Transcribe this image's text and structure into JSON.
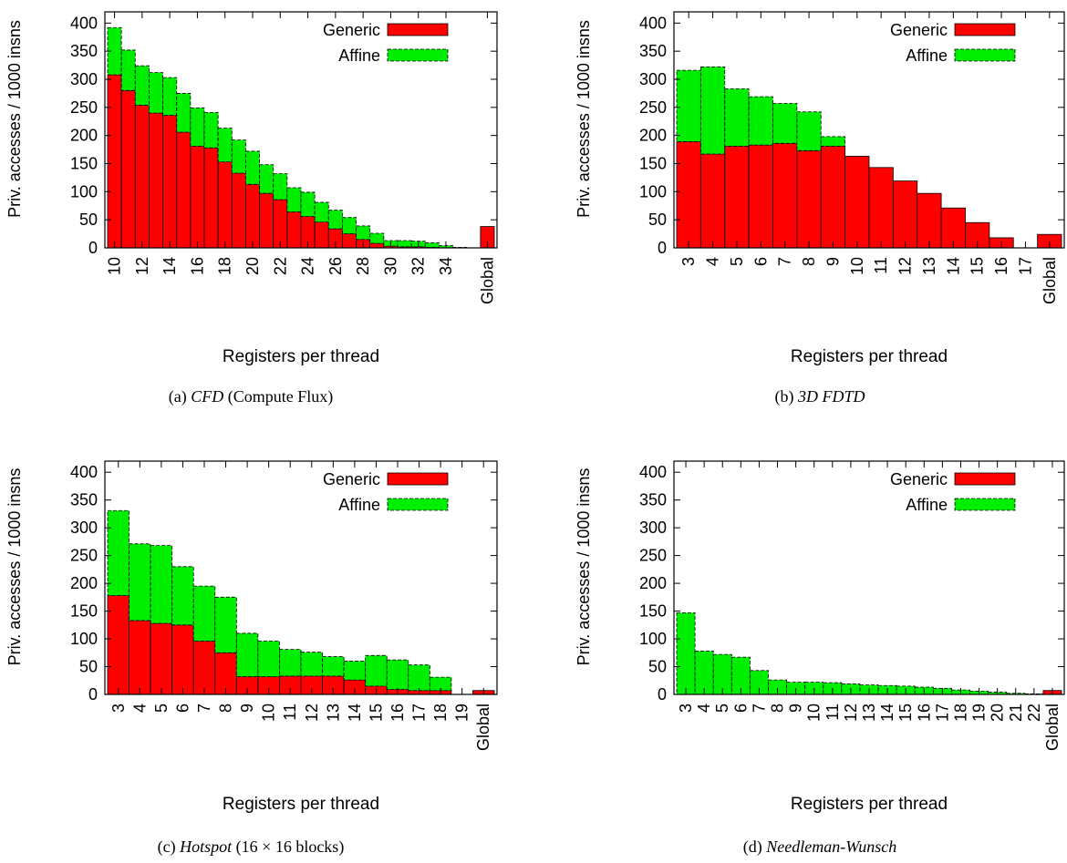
{
  "colors": {
    "generic": "#ff0000",
    "affine": "#00ee00",
    "edge": "#000000"
  },
  "chart_data": [
    {
      "type": "bar",
      "stacked": true,
      "caption_prefix": "(a)",
      "caption_italic": "CFD",
      "caption_rest": " (Compute Flux)",
      "xlabel": "Registers per thread",
      "ylabel": "Priv. accesses / 1000 insns",
      "ylim": [
        0,
        420
      ],
      "yticks": [
        0,
        50,
        100,
        150,
        200,
        250,
        300,
        350,
        400
      ],
      "legend": [
        "Generic",
        "Affine"
      ],
      "legend_position": "top-right",
      "categories": [
        "10",
        "11",
        "12",
        "13",
        "14",
        "15",
        "16",
        "17",
        "18",
        "19",
        "20",
        "21",
        "22",
        "23",
        "24",
        "25",
        "26",
        "27",
        "28",
        "29",
        "30",
        "31",
        "32",
        "33",
        "34",
        "35",
        "36",
        "Global"
      ],
      "tick_labels": [
        "10",
        "",
        "12",
        "",
        "14",
        "",
        "16",
        "",
        "18",
        "",
        "20",
        "",
        "22",
        "",
        "24",
        "",
        "26",
        "",
        "28",
        "",
        "30",
        "",
        "32",
        "",
        "34",
        "",
        "",
        "Global"
      ],
      "series": [
        {
          "name": "Generic",
          "values": [
            308,
            280,
            254,
            240,
            236,
            206,
            181,
            178,
            153,
            133,
            113,
            97,
            86,
            64,
            56,
            46,
            34,
            25,
            15,
            8,
            3,
            2,
            2,
            1,
            0,
            0,
            0,
            38
          ]
        },
        {
          "name": "Affine",
          "values": [
            84,
            72,
            70,
            72,
            67,
            69,
            68,
            63,
            60,
            59,
            59,
            51,
            46,
            43,
            43,
            35,
            33,
            29,
            24,
            18,
            10,
            11,
            10,
            8,
            4,
            1,
            0,
            0
          ]
        }
      ]
    },
    {
      "type": "bar",
      "stacked": true,
      "caption_prefix": "(b)",
      "caption_italic": "3D FDTD",
      "caption_rest": "",
      "xlabel": "Registers per thread",
      "ylabel": "Priv. accesses / 1000 insns",
      "ylim": [
        0,
        420
      ],
      "yticks": [
        0,
        50,
        100,
        150,
        200,
        250,
        300,
        350,
        400
      ],
      "legend": [
        "Generic",
        "Affine"
      ],
      "legend_position": "top-right",
      "categories": [
        "3",
        "4",
        "5",
        "6",
        "7",
        "8",
        "9",
        "10",
        "11",
        "12",
        "13",
        "14",
        "15",
        "16",
        "17",
        "Global"
      ],
      "tick_labels": [
        "3",
        "4",
        "5",
        "6",
        "7",
        "8",
        "9",
        "10",
        "11",
        "12",
        "13",
        "14",
        "15",
        "16",
        "17",
        "Global"
      ],
      "series": [
        {
          "name": "Generic",
          "values": [
            189,
            167,
            181,
            183,
            186,
            173,
            181,
            163,
            143,
            119,
            97,
            71,
            45,
            18,
            0,
            24
          ]
        },
        {
          "name": "Affine",
          "values": [
            127,
            155,
            102,
            86,
            71,
            69,
            17,
            0,
            0,
            0,
            0,
            0,
            0,
            0,
            0,
            0
          ]
        }
      ]
    },
    {
      "type": "bar",
      "stacked": true,
      "caption_prefix": "(c)",
      "caption_italic": "Hotspot",
      "caption_rest": " (16 × 16 blocks)",
      "xlabel": "Registers per thread",
      "ylabel": "Priv. accesses / 1000 insns",
      "ylim": [
        0,
        420
      ],
      "yticks": [
        0,
        50,
        100,
        150,
        200,
        250,
        300,
        350,
        400
      ],
      "legend": [
        "Generic",
        "Affine"
      ],
      "legend_position": "top-right",
      "categories": [
        "3",
        "4",
        "5",
        "6",
        "7",
        "8",
        "9",
        "10",
        "11",
        "12",
        "13",
        "14",
        "15",
        "16",
        "17",
        "18",
        "19",
        "Global"
      ],
      "tick_labels": [
        "3",
        "4",
        "5",
        "6",
        "7",
        "8",
        "9",
        "10",
        "11",
        "12",
        "13",
        "14",
        "15",
        "16",
        "17",
        "18",
        "19",
        "Global"
      ],
      "series": [
        {
          "name": "Generic",
          "values": [
            178,
            133,
            128,
            125,
            96,
            75,
            32,
            32,
            33,
            33,
            33,
            26,
            15,
            9,
            7,
            7,
            0,
            7
          ]
        },
        {
          "name": "Affine",
          "values": [
            153,
            138,
            140,
            105,
            99,
            100,
            78,
            64,
            48,
            43,
            35,
            34,
            55,
            53,
            46,
            24,
            0,
            0
          ]
        }
      ]
    },
    {
      "type": "bar",
      "stacked": true,
      "caption_prefix": "(d)",
      "caption_italic": "Needleman-Wunsch",
      "caption_rest": "",
      "xlabel": "Registers per thread",
      "ylabel": "Priv. accesses / 1000 insns",
      "ylim": [
        0,
        420
      ],
      "yticks": [
        0,
        50,
        100,
        150,
        200,
        250,
        300,
        350,
        400
      ],
      "legend": [
        "Generic",
        "Affine"
      ],
      "legend_position": "top-right",
      "categories": [
        "3",
        "4",
        "5",
        "6",
        "7",
        "8",
        "9",
        "10",
        "11",
        "12",
        "13",
        "14",
        "15",
        "16",
        "17",
        "18",
        "19",
        "20",
        "21",
        "22",
        "Global"
      ],
      "tick_labels": [
        "3",
        "4",
        "5",
        "6",
        "7",
        "8",
        "9",
        "10",
        "11",
        "12",
        "13",
        "14",
        "15",
        "16",
        "17",
        "18",
        "19",
        "20",
        "21",
        "22",
        "Global"
      ],
      "series": [
        {
          "name": "Generic",
          "values": [
            0,
            0,
            0,
            0,
            0,
            0,
            0,
            0,
            0,
            0,
            0,
            0,
            0,
            0,
            0,
            0,
            0,
            0,
            0,
            0,
            7
          ]
        },
        {
          "name": "Affine",
          "values": [
            147,
            78,
            72,
            67,
            43,
            26,
            22,
            22,
            21,
            19,
            17,
            16,
            15,
            13,
            11,
            8,
            6,
            4,
            2,
            1,
            0
          ]
        }
      ]
    }
  ]
}
